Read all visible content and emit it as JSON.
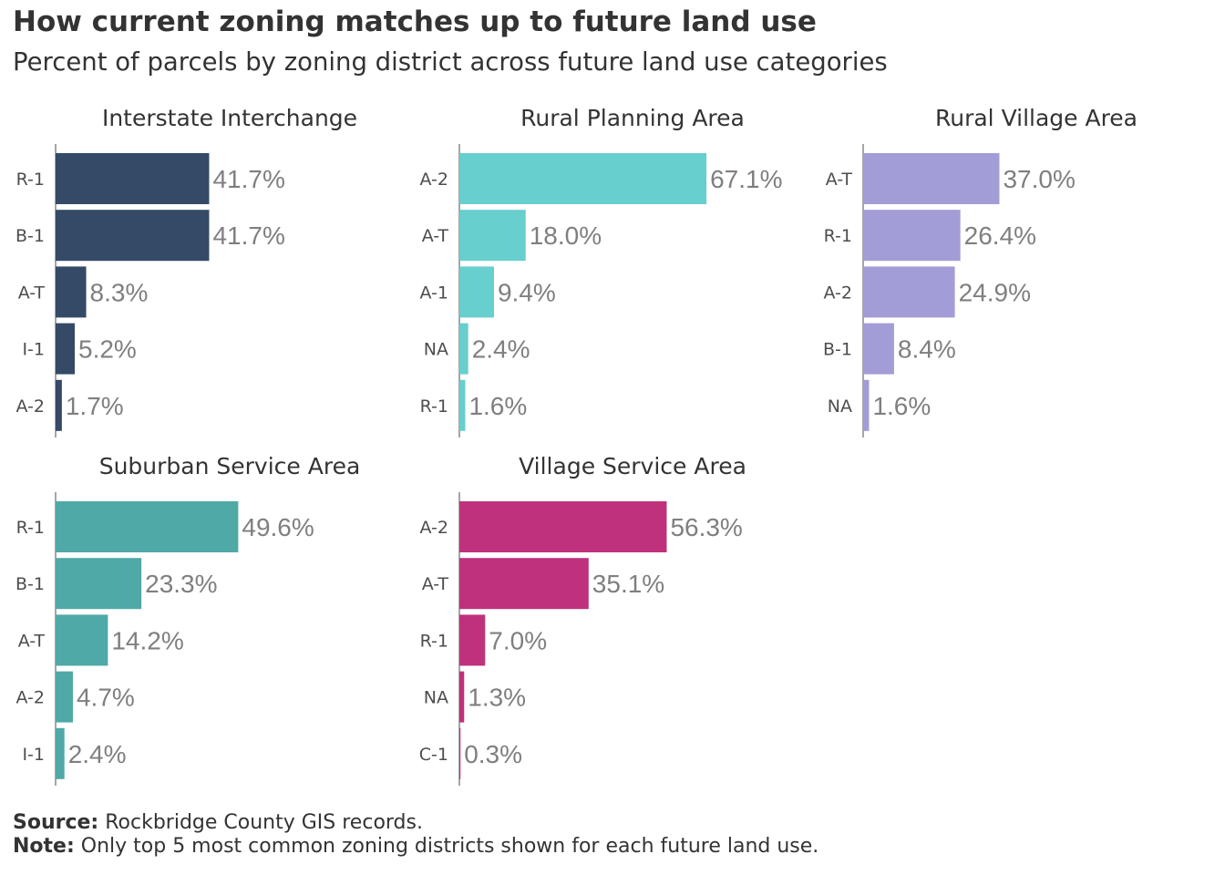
{
  "header": {
    "title": "How current zoning matches up to future land use",
    "subtitle": "Percent of parcels by zoning district across future land use categories"
  },
  "footer": {
    "source_label": "Source:",
    "source_text": "Rockbridge County GIS records.",
    "note_label": "Note:",
    "note_text": "Only top 5 most common zoning districts shown for each future land use."
  },
  "chart_data": [
    {
      "type": "bar",
      "orientation": "horizontal",
      "title": "Interstate Interchange",
      "color": "#344a66",
      "categories": [
        "R-1",
        "B-1",
        "A-T",
        "I-1",
        "A-2"
      ],
      "values": [
        41.7,
        41.7,
        8.3,
        5.2,
        1.7
      ],
      "labels": [
        "41.7%",
        "41.7%",
        "8.3%",
        "5.2%",
        "1.7%"
      ],
      "xlim": [
        0,
        100
      ]
    },
    {
      "type": "bar",
      "orientation": "horizontal",
      "title": "Rural Planning Area",
      "color": "#67cfcd",
      "categories": [
        "A-2",
        "A-T",
        "A-1",
        "NA",
        "R-1"
      ],
      "values": [
        67.1,
        18.0,
        9.4,
        2.4,
        1.6
      ],
      "labels": [
        "67.1%",
        "18.0%",
        "9.4%",
        "2.4%",
        "1.6%"
      ],
      "xlim": [
        0,
        100
      ]
    },
    {
      "type": "bar",
      "orientation": "horizontal",
      "title": "Rural Village Area",
      "color": "#a29dd6",
      "categories": [
        "A-T",
        "R-1",
        "A-2",
        "B-1",
        "NA"
      ],
      "values": [
        37.0,
        26.4,
        24.9,
        8.4,
        1.6
      ],
      "labels": [
        "37.0%",
        "26.4%",
        "24.9%",
        "8.4%",
        "1.6%"
      ],
      "xlim": [
        0,
        100
      ]
    },
    {
      "type": "bar",
      "orientation": "horizontal",
      "title": "Suburban Service Area",
      "color": "#4fa9a6",
      "categories": [
        "R-1",
        "B-1",
        "A-T",
        "A-2",
        "I-1"
      ],
      "values": [
        49.6,
        23.3,
        14.2,
        4.7,
        2.4
      ],
      "labels": [
        "49.6%",
        "23.3%",
        "14.2%",
        "4.7%",
        "2.4%"
      ],
      "xlim": [
        0,
        100
      ]
    },
    {
      "type": "bar",
      "orientation": "horizontal",
      "title": "Village Service Area",
      "color": "#c0317c",
      "categories": [
        "A-2",
        "A-T",
        "R-1",
        "NA",
        "C-1"
      ],
      "values": [
        56.3,
        35.1,
        7.0,
        1.3,
        0.3
      ],
      "labels": [
        "56.3%",
        "35.1%",
        "7.0%",
        "1.3%",
        "0.3%"
      ],
      "xlim": [
        0,
        100
      ]
    }
  ]
}
